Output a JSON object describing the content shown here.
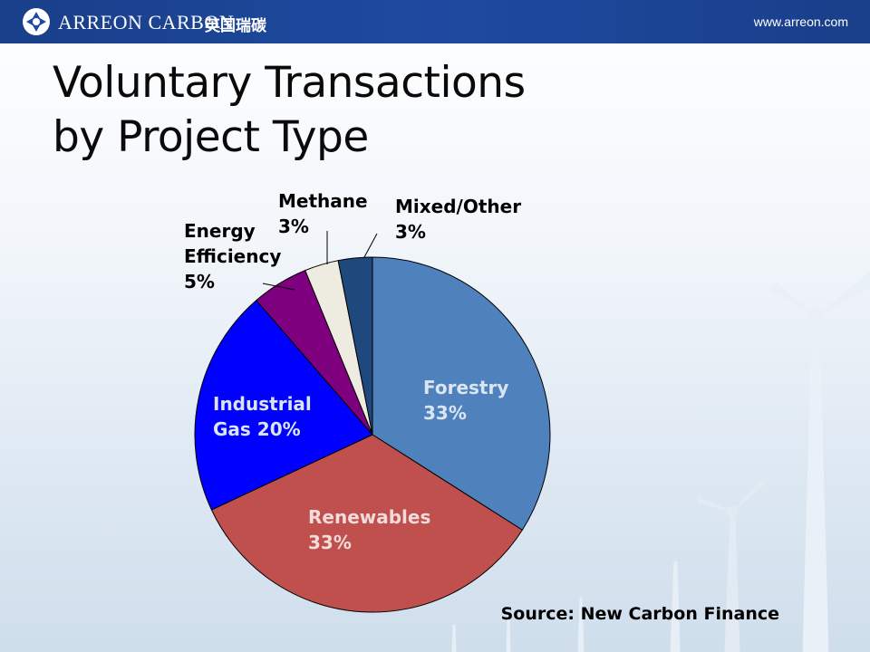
{
  "header": {
    "brand": "ARREON CARBON",
    "brand_cn": "英国瑞碳",
    "url": "www.arreon.com"
  },
  "slide": {
    "title_line1": "Voluntary Transactions",
    "title_line2": "by Project Type",
    "source": "Source: New Carbon Finance"
  },
  "colors": {
    "header": "#1d4aa0",
    "forestry": "#4f81bd",
    "renewables": "#c0504d",
    "industrial_gas": "#0000ff",
    "energy_efficiency": "#7f007f",
    "methane": "#eeece1",
    "mixed_other": "#1f497d"
  },
  "chart_data": {
    "type": "pie",
    "title": "",
    "slices": [
      {
        "label": "Forestry",
        "value": 33,
        "label_lines": [
          "Forestry",
          "33%"
        ],
        "color": "#4f81bd",
        "text_color": "#dbe5f1"
      },
      {
        "label": "Renewables",
        "value": 33,
        "label_lines": [
          "Renewables",
          "33%"
        ],
        "color": "#c0504d",
        "text_color": "#f2dcdb"
      },
      {
        "label": "Industrial Gas",
        "value": 20,
        "label_lines": [
          "Industrial",
          "Gas 20%"
        ],
        "color": "#0000ff",
        "text_color": "#dbe5f1"
      },
      {
        "label": "Energy Efficiency",
        "value": 5,
        "label_lines": [
          "Energy",
          "Efficiency",
          "5%"
        ],
        "color": "#7f007f",
        "text_color": "#000000"
      },
      {
        "label": "Methane",
        "value": 3,
        "label_lines": [
          "Methane",
          "3%"
        ],
        "color": "#eeece1",
        "text_color": "#000000"
      },
      {
        "label": "Mixed/Other",
        "value": 3,
        "label_lines": [
          "Mixed/Other",
          "3%"
        ],
        "color": "#1f497d",
        "text_color": "#000000"
      }
    ],
    "legend": "none",
    "label_position": "mixed (inside for large slices, outside with leader lines for small slices)"
  }
}
